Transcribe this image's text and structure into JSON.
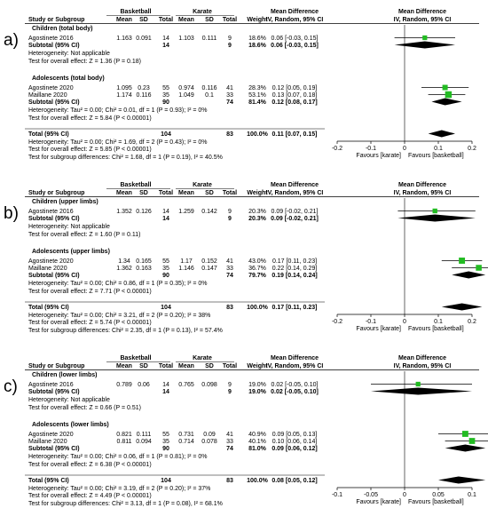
{
  "chart_data": [
    {
      "type": "forest",
      "panel_label": "a)",
      "headers": {
        "group1": "Basketball",
        "group2": "Karate",
        "study": "Study or Subgroup",
        "mean": "Mean",
        "sd": "SD",
        "total": "Total",
        "weight": "Weight",
        "md_title": "Mean Difference",
        "md_method": "IV, Random, 95% CI",
        "plot_title": "Mean Difference",
        "plot_method": "IV, Random, 95% CI"
      },
      "axis": {
        "min": -0.2,
        "max": 0.2,
        "ticks": [
          -0.2,
          -0.1,
          0,
          0.1,
          0.2
        ],
        "tick_labels": [
          "-0.2",
          "-0.1",
          "0",
          "0.1",
          "0.2"
        ],
        "favours_left": "Favours [karate]",
        "favours_right": "Favours [basketball]"
      },
      "subgroups": [
        {
          "title": "Children (total body)",
          "studies": [
            {
              "name": "Agostinete 2016",
              "mean1": "1.163",
              "sd1": "0.091",
              "n1": "14",
              "mean2": "1.103",
              "sd2": "0.111",
              "n2": "9",
              "weight": "18.6%",
              "ci_text": "0.06 [-0.03, 0.15]",
              "est": 0.06,
              "lo": -0.03,
              "hi": 0.15,
              "w": 18.6
            }
          ],
          "subtotal": {
            "label": "Subtotal (95% CI)",
            "n1": "14",
            "n2": "9",
            "weight": "18.6%",
            "ci_text": "0.06 [-0.03, 0.15]",
            "est": 0.06,
            "lo": -0.03,
            "hi": 0.15
          },
          "het": "Heterogeneity: Not applicable",
          "test": "Test for overall effect: Z = 1.36 (P = 0.18)"
        },
        {
          "title": "Adolescents (total body)",
          "studies": [
            {
              "name": "Agostinete 2020",
              "mean1": "1.095",
              "sd1": "0.23",
              "n1": "55",
              "mean2": "0.974",
              "sd2": "0.116",
              "n2": "41",
              "weight": "28.3%",
              "ci_text": "0.12 [0.05, 0.19]",
              "est": 0.12,
              "lo": 0.05,
              "hi": 0.19,
              "w": 28.3
            },
            {
              "name": "Maillane 2020",
              "mean1": "1.174",
              "sd1": "0.116",
              "n1": "35",
              "mean2": "1.049",
              "sd2": "0.1",
              "n2": "33",
              "weight": "53.1%",
              "ci_text": "0.13 [0.07, 0.18]",
              "est": 0.13,
              "lo": 0.07,
              "hi": 0.18,
              "w": 53.1
            }
          ],
          "subtotal": {
            "label": "Subtotal (95% CI)",
            "n1": "90",
            "n2": "74",
            "weight": "81.4%",
            "ci_text": "0.12 [0.08, 0.17]",
            "est": 0.12,
            "lo": 0.08,
            "hi": 0.17
          },
          "het": "Heterogeneity: Tau² = 0.00; Chi² = 0.01, df = 1 (P = 0.93); I² = 0%",
          "test": "Test for overall effect: Z = 5.84 (P < 0.00001)"
        }
      ],
      "total": {
        "label": "Total (95% CI)",
        "n1": "104",
        "n2": "83",
        "weight": "100.0%",
        "ci_text": "0.11 [0.07, 0.15]",
        "est": 0.11,
        "lo": 0.07,
        "hi": 0.15,
        "het": "Heterogeneity: Tau² = 0.00; Chi² = 1.69, df = 2 (P = 0.43); I² = 0%",
        "test": "Test for overall effect: Z = 5.85 (P < 0.00001)",
        "subgroup_test": "Test for subgroup differences: Chi² = 1.68, df = 1 (P = 0.19), I² = 40.5%"
      }
    },
    {
      "type": "forest",
      "panel_label": "b)",
      "headers": {
        "group1": "Basketball",
        "group2": "Karate",
        "study": "Study or Subgroup",
        "mean": "Mean",
        "sd": "SD",
        "total": "Total",
        "weight": "Weight",
        "md_title": "Mean Difference",
        "md_method": "IV, Random, 95% CI",
        "plot_title": "Mean Difference",
        "plot_method": "IV, Random, 95% CI"
      },
      "axis": {
        "min": -0.2,
        "max": 0.2,
        "ticks": [
          -0.2,
          -0.1,
          0,
          0.1,
          0.2
        ],
        "tick_labels": [
          "-0.2",
          "-0.1",
          "0",
          "0.1",
          "0.2"
        ],
        "favours_left": "Favours [karate]",
        "favours_right": "Favours [basketball]"
      },
      "subgroups": [
        {
          "title": "Children (upper limbs)",
          "studies": [
            {
              "name": "Agostinete 2016",
              "mean1": "1.352",
              "sd1": "0.126",
              "n1": "14",
              "mean2": "1.259",
              "sd2": "0.142",
              "n2": "9",
              "weight": "20.3%",
              "ci_text": "0.09 [-0.02, 0.21]",
              "est": 0.09,
              "lo": -0.02,
              "hi": 0.21,
              "w": 20.3
            }
          ],
          "subtotal": {
            "label": "Subtotal (95% CI)",
            "n1": "14",
            "n2": "9",
            "weight": "20.3%",
            "ci_text": "0.09 [-0.02, 0.21]",
            "est": 0.09,
            "lo": -0.02,
            "hi": 0.21
          },
          "het": "Heterogeneity: Not applicable",
          "test": "Test for overall effect: Z = 1.60 (P = 0.11)"
        },
        {
          "title": "Adolescents (upper limbs)",
          "studies": [
            {
              "name": "Agostinete 2020",
              "mean1": "1.34",
              "sd1": "0.165",
              "n1": "55",
              "mean2": "1.17",
              "sd2": "0.152",
              "n2": "41",
              "weight": "43.0%",
              "ci_text": "0.17 [0.11, 0.23]",
              "est": 0.17,
              "lo": 0.11,
              "hi": 0.23,
              "w": 43.0
            },
            {
              "name": "Maillane 2020",
              "mean1": "1.362",
              "sd1": "0.163",
              "n1": "35",
              "mean2": "1.146",
              "sd2": "0.147",
              "n2": "33",
              "weight": "36.7%",
              "ci_text": "0.22 [0.14, 0.29]",
              "est": 0.22,
              "lo": 0.14,
              "hi": 0.29,
              "w": 36.7
            }
          ],
          "subtotal": {
            "label": "Subtotal (95% CI)",
            "n1": "90",
            "n2": "74",
            "weight": "79.7%",
            "ci_text": "0.19 [0.14, 0.24]",
            "est": 0.19,
            "lo": 0.14,
            "hi": 0.24
          },
          "het": "Heterogeneity: Tau² = 0.00; Chi² = 0.86, df = 1 (P = 0.35); I² = 0%",
          "test": "Test for overall effect: Z = 7.71 (P < 0.00001)"
        }
      ],
      "total": {
        "label": "Total (95% CI)",
        "n1": "104",
        "n2": "83",
        "weight": "100.0%",
        "ci_text": "0.17 [0.11, 0.23]",
        "est": 0.17,
        "lo": 0.11,
        "hi": 0.23,
        "het": "Heterogeneity: Tau² = 0.00; Chi² = 3.21, df = 2 (P = 0.20); I² = 38%",
        "test": "Test for overall effect: Z = 5.74 (P < 0.00001)",
        "subgroup_test": "Test for subgroup differences: Chi² = 2.35, df = 1 (P = 0.13), I² = 57.4%"
      }
    },
    {
      "type": "forest",
      "panel_label": "c)",
      "headers": {
        "group1": "Basketball",
        "group2": "Karate",
        "study": "Study or Subgroup",
        "mean": "Mean",
        "sd": "SD",
        "total": "Total",
        "weight": "Weight",
        "md_title": "Mean Difference",
        "md_method": "IV, Random, 95% CI",
        "plot_title": "Mean Difference",
        "plot_method": "IV, Random, 95% CI"
      },
      "axis": {
        "min": -0.1,
        "max": 0.1,
        "ticks": [
          -0.1,
          -0.05,
          0,
          0.05,
          0.1
        ],
        "tick_labels": [
          "-0.1",
          "-0.05",
          "0",
          "0.05",
          "0.1"
        ],
        "favours_left": "Favours [karate]",
        "favours_right": "Favours [basketball]"
      },
      "subgroups": [
        {
          "title": "Children (lower limbs)",
          "studies": [
            {
              "name": "Agostinete 2016",
              "mean1": "0.789",
              "sd1": "0.06",
              "n1": "14",
              "mean2": "0.765",
              "sd2": "0.098",
              "n2": "9",
              "weight": "19.0%",
              "ci_text": "0.02 [-0.05, 0.10]",
              "est": 0.02,
              "lo": -0.05,
              "hi": 0.1,
              "w": 19.0
            }
          ],
          "subtotal": {
            "label": "Subtotal (95% CI)",
            "n1": "14",
            "n2": "9",
            "weight": "19.0%",
            "ci_text": "0.02 [-0.05, 0.10]",
            "est": 0.02,
            "lo": -0.05,
            "hi": 0.1
          },
          "het": "Heterogeneity: Not applicable",
          "test": "Test for overall effect: Z = 0.66 (P = 0.51)"
        },
        {
          "title": "Adolescents (lower limbs)",
          "studies": [
            {
              "name": "Agostinete 2020",
              "mean1": "0.821",
              "sd1": "0.111",
              "n1": "55",
              "mean2": "0.731",
              "sd2": "0.09",
              "n2": "41",
              "weight": "40.9%",
              "ci_text": "0.09 [0.05, 0.13]",
              "est": 0.09,
              "lo": 0.05,
              "hi": 0.13,
              "w": 40.9
            },
            {
              "name": "Maillane 2020",
              "mean1": "0.811",
              "sd1": "0.094",
              "n1": "35",
              "mean2": "0.714",
              "sd2": "0.078",
              "n2": "33",
              "weight": "40.1%",
              "ci_text": "0.10 [0.06, 0.14]",
              "est": 0.1,
              "lo": 0.06,
              "hi": 0.14,
              "w": 40.1
            }
          ],
          "subtotal": {
            "label": "Subtotal (95% CI)",
            "n1": "90",
            "n2": "74",
            "weight": "81.0%",
            "ci_text": "0.09 [0.06, 0.12]",
            "est": 0.09,
            "lo": 0.06,
            "hi": 0.12
          },
          "het": "Heterogeneity: Tau² = 0.00; Chi² = 0.06, df = 1 (P = 0.81); I² = 0%",
          "test": "Test for overall effect: Z = 6.38 (P < 0.00001)"
        }
      ],
      "total": {
        "label": "Total (95% CI)",
        "n1": "104",
        "n2": "83",
        "weight": "100.0%",
        "ci_text": "0.08 [0.05, 0.12]",
        "est": 0.08,
        "lo": 0.05,
        "hi": 0.12,
        "het": "Heterogeneity: Tau² = 0.00; Chi² = 3.19, df = 2 (P = 0.20); I² = 37%",
        "test": "Test for overall effect: Z = 4.49 (P < 0.00001)",
        "subgroup_test": "Test for subgroup differences: Chi² = 3.13, df = 1 (P = 0.08), I² = 68.1%"
      }
    }
  ],
  "colors": {
    "study_square": "#22bb22",
    "diamond": "#000000",
    "rule": "#000000"
  }
}
